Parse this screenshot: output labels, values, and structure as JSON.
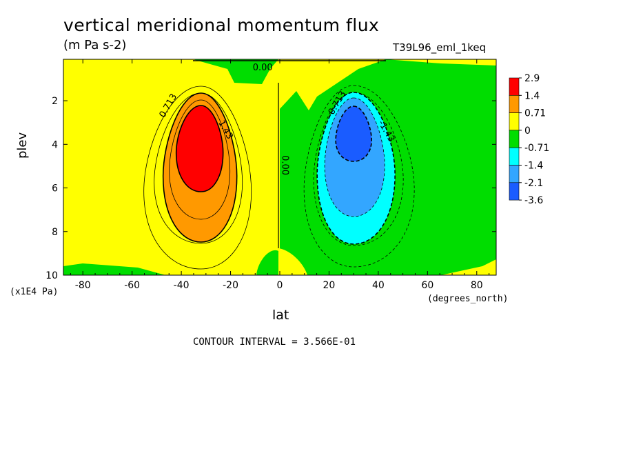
{
  "header": {
    "title": "vertical meridional momentum flux",
    "units": "(m Pa s-2)",
    "case_name": "T39L96_eml_1keq"
  },
  "footer": {
    "contour_interval": "CONTOUR INTERVAL = 3.566E-01"
  },
  "chart_data": {
    "type": "contour",
    "title": "vertical meridional momentum flux",
    "units": "(m Pa s-2)",
    "xlabel": "lat",
    "x_units": "(degrees_north)",
    "ylabel": "plev",
    "y_units": "(x1E4 Pa)",
    "xlim": [
      -87.9,
      87.9
    ],
    "ylim": [
      10,
      0.1
    ],
    "y_inverted": true,
    "x_ticks": [
      -80,
      -60,
      -40,
      -20,
      0,
      20,
      40,
      60,
      80
    ],
    "y_ticks": [
      2,
      4,
      6,
      8,
      10
    ],
    "contour_interval": 0.3566,
    "colorbar": {
      "labels": [
        "2.9",
        "1.4",
        "0.71",
        "0",
        "-0.71",
        "-1.4",
        "-2.1",
        "-3.6"
      ],
      "colors": [
        "#ff0000",
        "#ff9900",
        "#ffff00",
        "#00dd00",
        "#00ffff",
        "#33a6ff",
        "#1a5cff"
      ]
    },
    "features": [
      {
        "name": "positive maximum",
        "lat": -32,
        "plev": 3.8,
        "value": 2.9
      },
      {
        "name": "negative minimum",
        "lat": 30,
        "plev": 3.2,
        "value": -3.6
      }
    ],
    "contour_labels": [
      {
        "text": "0.713",
        "lat": -47,
        "plev": 2.8
      },
      {
        "text": "1.43",
        "lat": -25,
        "plev": 3.0
      },
      {
        "text": "0.00",
        "lat": -11,
        "plev": 0.6
      },
      {
        "text": "0.00",
        "lat": 1,
        "plev": 4.5
      },
      {
        "text": "-0.713",
        "lat": 21,
        "plev": 2.8
      },
      {
        "text": "-1.43",
        "lat": 40,
        "plev": 3.0
      }
    ]
  }
}
